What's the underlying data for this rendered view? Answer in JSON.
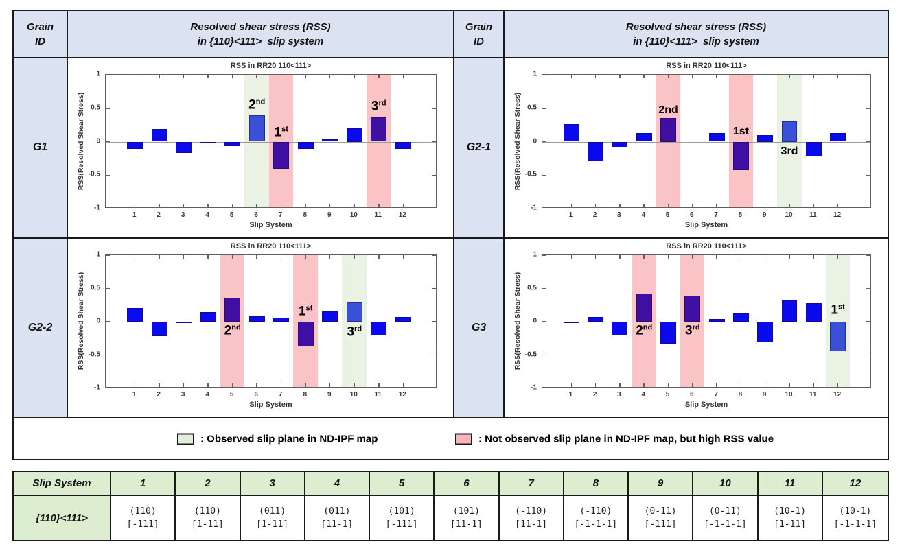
{
  "colors": {
    "header_bg": "#dbe3f2",
    "table_green": "#dcedd0",
    "bar_blue": "#0a0aef",
    "bar_royal": "#3b50d9",
    "bar_purple": "#3f0fa4",
    "band_green": "#e9f2e3",
    "band_red": "#fac3c6",
    "legend_green": "#e4efdb",
    "legend_red": "#fab4b9"
  },
  "header": {
    "grain_line1": "Grain",
    "grain_line2": "ID",
    "rss_line1": "Resolved shear stress (RSS)",
    "rss_line2": "in {110}<111>  slip system"
  },
  "axis": {
    "title": "RSS in RR20 110<111>",
    "ylabel": "RSS(Resolved Shear Stress)",
    "xlabel": "Slip System",
    "ylim": [
      -1,
      1
    ],
    "yticks": [
      1,
      0.5,
      0,
      -0.5,
      -1
    ],
    "ytick_labels": [
      "1",
      "0.5",
      "0",
      "-0.5",
      "-1"
    ],
    "xticks": [
      1,
      2,
      3,
      4,
      5,
      6,
      7,
      8,
      9,
      10,
      11,
      12
    ]
  },
  "chart_data": [
    {
      "type": "bar",
      "grain": "G1",
      "title": "RSS in RR20 110<111>",
      "xlabel": "Slip System",
      "ylabel": "RSS(Resolved Shear Stress)",
      "ylim": [
        -1,
        1
      ],
      "categories": [
        1,
        2,
        3,
        4,
        5,
        6,
        7,
        8,
        9,
        10,
        11,
        12
      ],
      "values": [
        -0.11,
        0.19,
        -0.17,
        -0.02,
        -0.07,
        0.39,
        -0.4,
        -0.11,
        0.04,
        0.2,
        0.36,
        -0.11
      ],
      "highlights": [
        {
          "slip": 6,
          "kind": "observed"
        },
        {
          "slip": 7,
          "kind": "high_rss"
        },
        {
          "slip": 11,
          "kind": "high_rss"
        }
      ],
      "emphasis_bars": [
        {
          "slip": 6,
          "color_key": "bar_royal"
        },
        {
          "slip": 7,
          "color_key": "bar_purple"
        },
        {
          "slip": 11,
          "color_key": "bar_purple"
        }
      ],
      "rank_labels": [
        {
          "slip": 6,
          "num": "2",
          "suffix": "nd",
          "superscript": true,
          "y": 0.55
        },
        {
          "slip": 7,
          "num": "1",
          "suffix": "st",
          "superscript": true,
          "y": 0.14
        },
        {
          "slip": 11,
          "num": "3",
          "suffix": "rd",
          "superscript": true,
          "y": 0.53
        }
      ]
    },
    {
      "type": "bar",
      "grain": "G2-1",
      "title": "RSS in RR20 110<111>",
      "xlabel": "Slip System",
      "ylabel": "RSS(Resolved Shear Stress)",
      "ylim": [
        -1,
        1
      ],
      "categories": [
        1,
        2,
        3,
        4,
        5,
        6,
        7,
        8,
        9,
        10,
        11,
        12
      ],
      "values": [
        0.26,
        -0.29,
        -0.09,
        0.13,
        0.35,
        0.0,
        0.13,
        -0.43,
        0.1,
        0.3,
        -0.22,
        0.13
      ],
      "highlights": [
        {
          "slip": 5,
          "kind": "high_rss"
        },
        {
          "slip": 8,
          "kind": "high_rss"
        },
        {
          "slip": 10,
          "kind": "observed"
        }
      ],
      "emphasis_bars": [
        {
          "slip": 5,
          "color_key": "bar_purple"
        },
        {
          "slip": 8,
          "color_key": "bar_purple"
        },
        {
          "slip": 10,
          "color_key": "bar_royal"
        }
      ],
      "rank_labels": [
        {
          "slip": 5,
          "num": "2",
          "suffix": "nd",
          "superscript": false,
          "y": 0.47
        },
        {
          "slip": 8,
          "num": "1",
          "suffix": "st",
          "superscript": false,
          "y": 0.15
        },
        {
          "slip": 10,
          "num": "3",
          "suffix": "rd",
          "superscript": false,
          "y": -0.15
        }
      ]
    },
    {
      "type": "bar",
      "grain": "G2-2",
      "title": "RSS in RR20 110<111>",
      "xlabel": "Slip System",
      "ylabel": "RSS(Resolved Shear Stress)",
      "ylim": [
        -1,
        1
      ],
      "categories": [
        1,
        2,
        3,
        4,
        5,
        6,
        7,
        8,
        9,
        10,
        11,
        12
      ],
      "values": [
        0.21,
        -0.22,
        -0.02,
        0.14,
        0.36,
        0.08,
        0.06,
        -0.37,
        0.15,
        0.3,
        -0.21,
        0.07
      ],
      "highlights": [
        {
          "slip": 5,
          "kind": "high_rss"
        },
        {
          "slip": 8,
          "kind": "high_rss"
        },
        {
          "slip": 10,
          "kind": "observed"
        }
      ],
      "emphasis_bars": [
        {
          "slip": 5,
          "color_key": "bar_purple"
        },
        {
          "slip": 8,
          "color_key": "bar_purple"
        },
        {
          "slip": 10,
          "color_key": "bar_royal"
        }
      ],
      "rank_labels": [
        {
          "slip": 5,
          "num": "2",
          "suffix": "nd",
          "superscript": true,
          "y": -0.13
        },
        {
          "slip": 8,
          "num": "1",
          "suffix": "st",
          "superscript": true,
          "y": 0.15
        },
        {
          "slip": 10,
          "num": "3",
          "suffix": "rd",
          "superscript": true,
          "y": -0.15
        }
      ]
    },
    {
      "type": "bar",
      "grain": "G3",
      "title": "RSS in RR20 110<111>",
      "xlabel": "Slip System",
      "ylabel": "RSS(Resolved Shear Stress)",
      "ylim": [
        -1,
        1
      ],
      "categories": [
        1,
        2,
        3,
        4,
        5,
        6,
        7,
        8,
        9,
        10,
        11,
        12
      ],
      "values": [
        -0.02,
        0.07,
        -0.21,
        0.42,
        -0.33,
        0.39,
        0.04,
        0.12,
        -0.31,
        0.32,
        0.28,
        -0.44
      ],
      "highlights": [
        {
          "slip": 4,
          "kind": "high_rss"
        },
        {
          "slip": 6,
          "kind": "high_rss"
        },
        {
          "slip": 12,
          "kind": "observed"
        }
      ],
      "emphasis_bars": [
        {
          "slip": 4,
          "color_key": "bar_purple"
        },
        {
          "slip": 6,
          "color_key": "bar_purple"
        },
        {
          "slip": 12,
          "color_key": "bar_royal"
        }
      ],
      "rank_labels": [
        {
          "slip": 4,
          "num": "2",
          "suffix": "nd",
          "superscript": true,
          "y": -0.13
        },
        {
          "slip": 6,
          "num": "3",
          "suffix": "rd",
          "superscript": true,
          "y": -0.13
        },
        {
          "slip": 12,
          "num": "1",
          "suffix": "st",
          "superscript": true,
          "y": 0.18
        }
      ]
    }
  ],
  "legend": {
    "observed": {
      "label": ": Observed slip plane in ND-IPF map"
    },
    "not_observed": {
      "label": ": Not observed slip plane in ND-IPF map, but high RSS value"
    }
  },
  "slip_table": {
    "row1_header": "Slip System",
    "row2_header": "{110}<111>",
    "columns": [
      {
        "id": "1",
        "plane": "(110)",
        "direction": "[-111]"
      },
      {
        "id": "2",
        "plane": "(110)",
        "direction": "[1-11]"
      },
      {
        "id": "3",
        "plane": "(011)",
        "direction": "[1-11]"
      },
      {
        "id": "4",
        "plane": "(011)",
        "direction": "[11-1]"
      },
      {
        "id": "5",
        "plane": "(101)",
        "direction": "[-111]"
      },
      {
        "id": "6",
        "plane": "(101)",
        "direction": "[11-1]"
      },
      {
        "id": "7",
        "plane": "(-110)",
        "direction": "[11-1]"
      },
      {
        "id": "8",
        "plane": "(-110)",
        "direction": "[-1-1-1]"
      },
      {
        "id": "9",
        "plane": "(0-11)",
        "direction": "[-111]"
      },
      {
        "id": "10",
        "plane": "(0-11)",
        "direction": "[-1-1-1]"
      },
      {
        "id": "11",
        "plane": "(10-1)",
        "direction": "[1-11]"
      },
      {
        "id": "12",
        "plane": "(10-1)",
        "direction": "[-1-1-1]"
      }
    ]
  }
}
